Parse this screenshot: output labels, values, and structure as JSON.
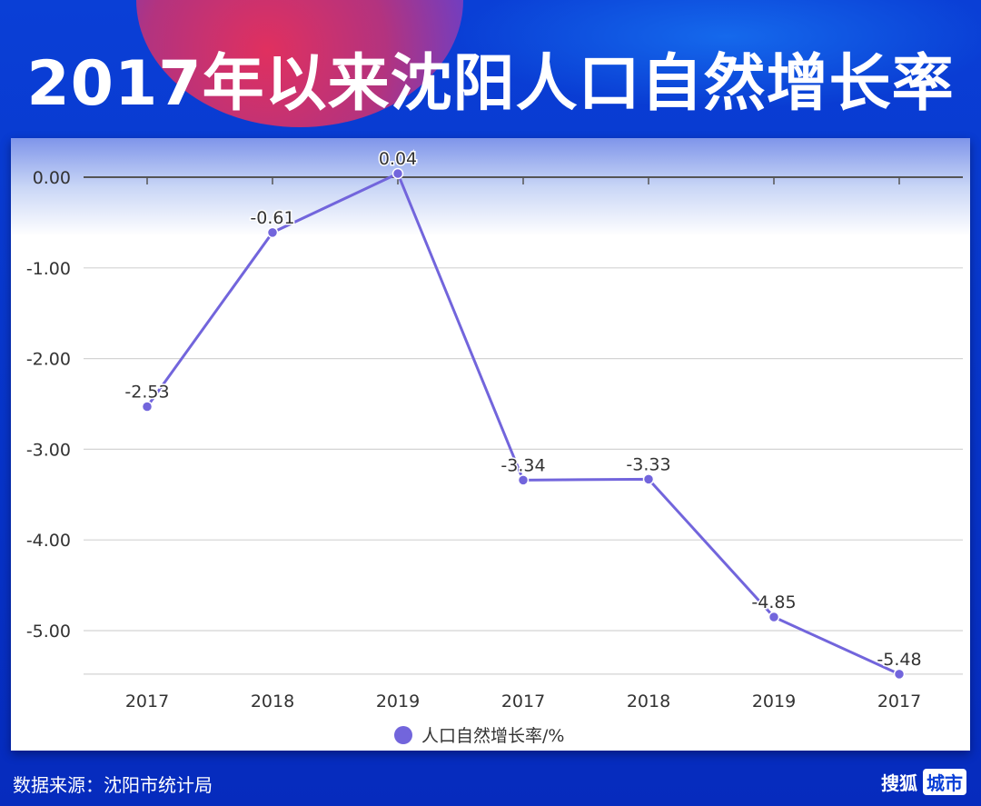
{
  "title": "2017年以来沈阳人口自然增长率",
  "footer": {
    "source": "数据来源：沈阳市统计局",
    "logo_main": "搜狐",
    "logo_box": "城市"
  },
  "chart_data": {
    "type": "line",
    "categories": [
      "2017",
      "2018",
      "2019",
      "2017",
      "2018",
      "2019",
      "2017"
    ],
    "series": [
      {
        "name": "人口自然增长率/%",
        "values": [
          -2.53,
          -0.61,
          0.04,
          -3.34,
          -3.33,
          -4.85,
          -5.48
        ],
        "color": "#7265dc"
      }
    ],
    "data_labels": [
      "-2.53",
      "-0.61",
      "0.04",
      "-3.34",
      "-3.33",
      "-4.85",
      "-5.48"
    ],
    "y_ticks": [
      0,
      -1,
      -2,
      -3,
      -4,
      -5
    ],
    "y_tick_labels": [
      "0.00",
      "-1.00",
      "-2.00",
      "-3.00",
      "-4.00",
      "-5.00"
    ],
    "ylim": [
      -5.48,
      0
    ],
    "grid": true,
    "legend_position": "bottom"
  }
}
